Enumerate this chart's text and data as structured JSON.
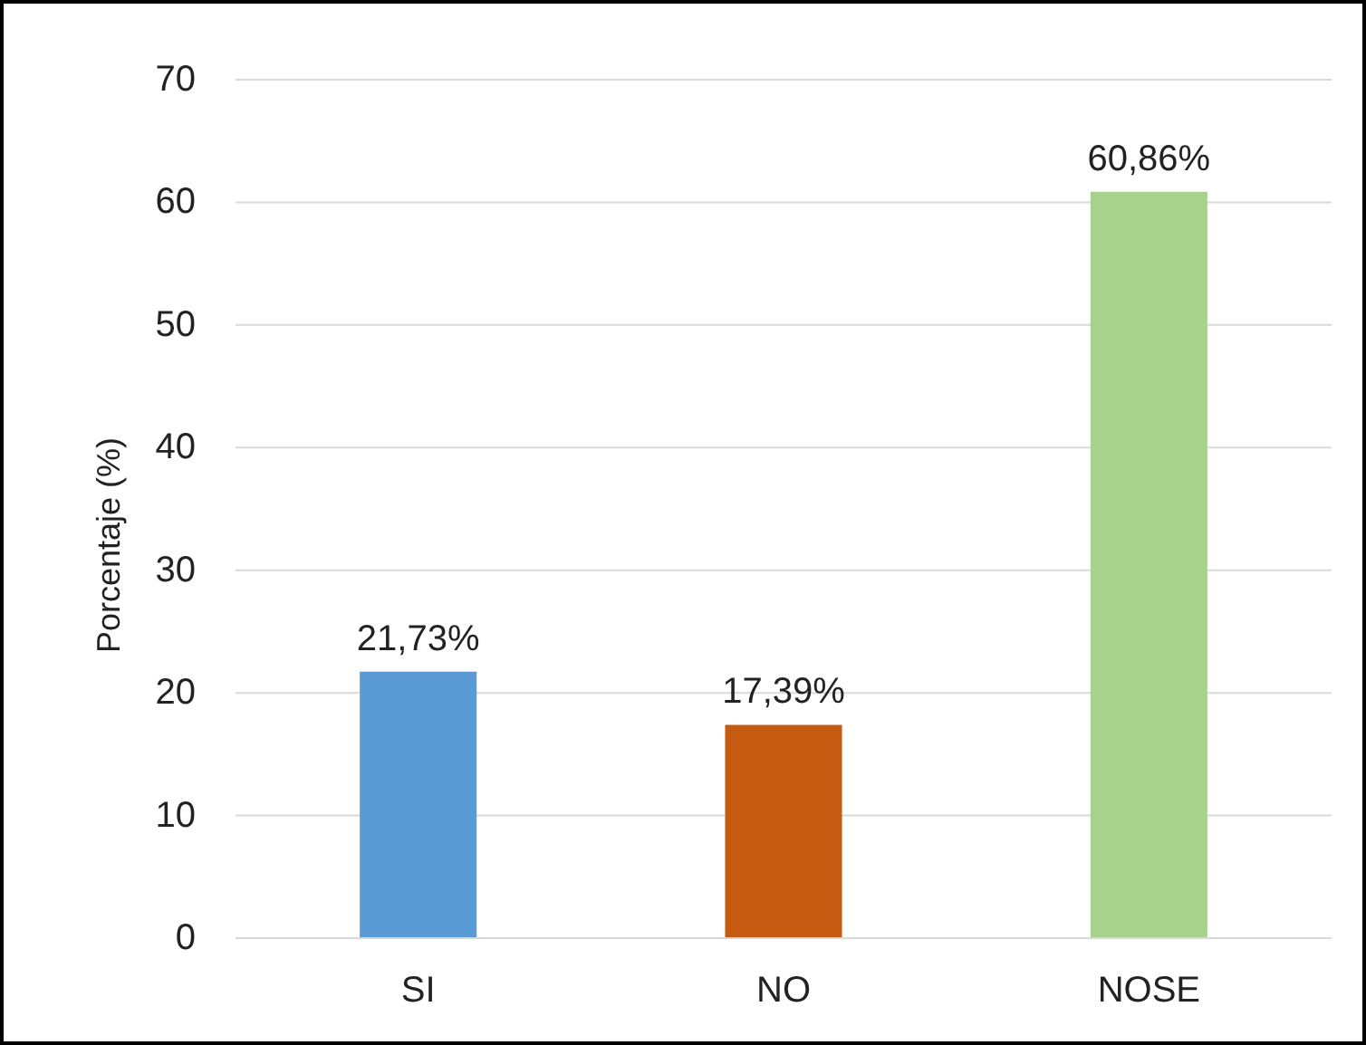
{
  "chart_data": {
    "type": "bar",
    "ylabel": "Porcentaje (%)",
    "categories": [
      "SI",
      "NO",
      "NOSE"
    ],
    "values": [
      21.73,
      17.39,
      60.86
    ],
    "colors": [
      "#5b9bd5",
      "#c55a11",
      "#a9d18e"
    ],
    "value_labels": [
      "21,73%",
      "17,39%",
      "60,86%"
    ],
    "ylim": [
      0,
      70
    ],
    "yticks": [
      0,
      10,
      20,
      30,
      40,
      50,
      60,
      70
    ],
    "grid": "y"
  }
}
